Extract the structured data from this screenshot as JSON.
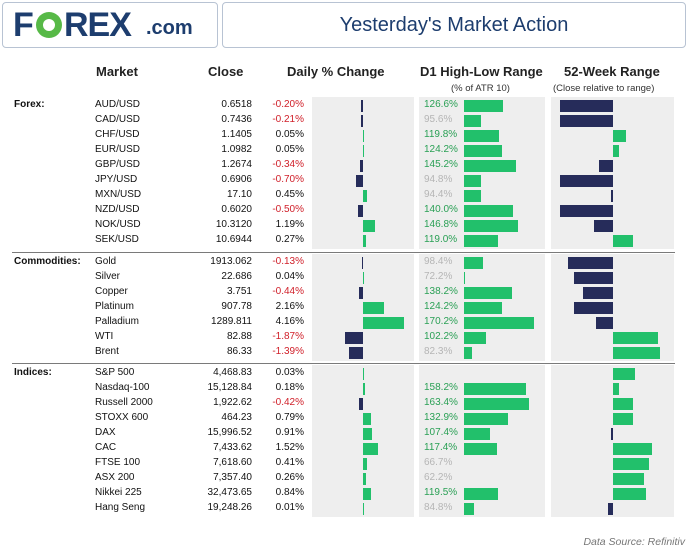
{
  "header": {
    "logo_f": "F",
    "logo_rex": "REX",
    "logo_com": ".com",
    "title": "Yesterday's Market Action"
  },
  "columns": {
    "market": "Market",
    "close": "Close",
    "daily": "Daily % Change",
    "range": "D1 High-Low Range",
    "range_sub": "(% of ATR 10)",
    "week52": "52-Week Range",
    "week52_sub": "(Close relative to range)"
  },
  "colors": {
    "positive": "#22c06b",
    "negative_bar": "#262c5a",
    "negative_text": "#d0202a",
    "panel": "#eeeeee"
  },
  "chart_data": {
    "type": "table",
    "daily_axis_max": 4.5,
    "range_axis_max": 170,
    "groups": [
      {
        "name": "Forex:",
        "rows": [
          {
            "market": "AUD/USD",
            "close": "0.6518",
            "daily": -0.2,
            "daily_label": "-0.20%",
            "range": 126.6,
            "range_label": "126.6%",
            "range_good": true,
            "w52": -1.0
          },
          {
            "market": "CAD/USD",
            "close": "0.7436",
            "daily": -0.21,
            "daily_label": "-0.21%",
            "range": 95.6,
            "range_label": "95.6%",
            "range_good": false,
            "w52": -1.0
          },
          {
            "market": "CHF/USD",
            "close": "1.1405",
            "daily": 0.05,
            "daily_label": "0.05%",
            "range": 119.8,
            "range_label": "119.8%",
            "range_good": true,
            "w52": 0.24
          },
          {
            "market": "EUR/USD",
            "close": "1.0982",
            "daily": 0.05,
            "daily_label": "0.05%",
            "range": 124.2,
            "range_label": "124.2%",
            "range_good": true,
            "w52": 0.12
          },
          {
            "market": "GBP/USD",
            "close": "1.2674",
            "daily": -0.34,
            "daily_label": "-0.34%",
            "range": 145.2,
            "range_label": "145.2%",
            "range_good": true,
            "w52": -0.26
          },
          {
            "market": "JPY/USD",
            "close": "0.6906",
            "daily": -0.7,
            "daily_label": "-0.70%",
            "range": 94.8,
            "range_label": "94.8%",
            "range_good": false,
            "w52": -1.0
          },
          {
            "market": "MXN/USD",
            "close": "17.10",
            "daily": 0.45,
            "daily_label": "0.45%",
            "range": 94.4,
            "range_label": "94.4%",
            "range_good": false,
            "w52": -0.02
          },
          {
            "market": "NZD/USD",
            "close": "0.6020",
            "daily": -0.5,
            "daily_label": "-0.50%",
            "range": 140.0,
            "range_label": "140.0%",
            "range_good": true,
            "w52": -1.0
          },
          {
            "market": "NOK/USD",
            "close": "10.3120",
            "daily": 1.19,
            "daily_label": "1.19%",
            "range": 146.8,
            "range_label": "146.8%",
            "range_good": true,
            "w52": -0.35
          },
          {
            "market": "SEK/USD",
            "close": "10.6944",
            "daily": 0.27,
            "daily_label": "0.27%",
            "range": 119.0,
            "range_label": "119.0%",
            "range_good": true,
            "w52": 0.38
          }
        ]
      },
      {
        "name": "Commodities:",
        "rows": [
          {
            "market": "Gold",
            "close": "1913.062",
            "daily": -0.13,
            "daily_label": "-0.13%",
            "range": 98.4,
            "range_label": "98.4%",
            "range_good": false,
            "w52": -0.84
          },
          {
            "market": "Silver",
            "close": "22.686",
            "daily": 0.04,
            "daily_label": "0.04%",
            "range": 72.2,
            "range_label": "72.2%",
            "range_good": false,
            "w52": -0.73
          },
          {
            "market": "Copper",
            "close": "3.751",
            "daily": -0.44,
            "daily_label": "-0.44%",
            "range": 138.2,
            "range_label": "138.2%",
            "range_good": true,
            "w52": -0.56
          },
          {
            "market": "Platinum",
            "close": "907.78",
            "daily": 2.16,
            "daily_label": "2.16%",
            "range": 124.2,
            "range_label": "124.2%",
            "range_good": true,
            "w52": -0.74
          },
          {
            "market": "Palladium",
            "close": "1289.811",
            "daily": 4.16,
            "daily_label": "4.16%",
            "range": 170.2,
            "range_label": "170.2%",
            "range_good": true,
            "w52": -0.33
          },
          {
            "market": "WTI",
            "close": "82.88",
            "daily": -1.87,
            "daily_label": "-1.87%",
            "range": 102.2,
            "range_label": "102.2%",
            "range_good": true,
            "w52": 0.84
          },
          {
            "market": "Brent",
            "close": "86.33",
            "daily": -1.39,
            "daily_label": "-1.39%",
            "range": 82.3,
            "range_label": "82.3%",
            "range_good": false,
            "w52": 0.88
          }
        ]
      },
      {
        "name": "Indices:",
        "rows": [
          {
            "market": "S&P 500",
            "close": "4,468.83",
            "daily": 0.03,
            "daily_label": "0.03%",
            "range": 0,
            "range_label": "",
            "range_good": true,
            "w52": 0.41
          },
          {
            "market": "Nasdaq-100",
            "close": "15,128.84",
            "daily": 0.18,
            "daily_label": "0.18%",
            "range": 158.2,
            "range_label": "158.2%",
            "range_good": true,
            "w52": 0.12
          },
          {
            "market": "Russell 2000",
            "close": "1,922.62",
            "daily": -0.42,
            "daily_label": "-0.42%",
            "range": 163.4,
            "range_label": "163.4%",
            "range_good": true,
            "w52": 0.38
          },
          {
            "market": "STOXX 600",
            "close": "464.23",
            "daily": 0.79,
            "daily_label": "0.79%",
            "range": 132.9,
            "range_label": "132.9%",
            "range_good": true,
            "w52": 0.38
          },
          {
            "market": "DAX",
            "close": "15,996.52",
            "daily": 0.91,
            "daily_label": "0.91%",
            "range": 107.4,
            "range_label": "107.4%",
            "range_good": true,
            "w52": -0.02
          },
          {
            "market": "CAC",
            "close": "7,433.62",
            "daily": 1.52,
            "daily_label": "1.52%",
            "range": 117.4,
            "range_label": "117.4%",
            "range_good": true,
            "w52": 0.74
          },
          {
            "market": "FTSE 100",
            "close": "7,618.60",
            "daily": 0.41,
            "daily_label": "0.41%",
            "range": 66.7,
            "range_label": "66.7%",
            "range_good": false,
            "w52": 0.68
          },
          {
            "market": "ASX 200",
            "close": "7,357.40",
            "daily": 0.26,
            "daily_label": "0.26%",
            "range": 62.2,
            "range_label": "62.2%",
            "range_good": false,
            "w52": 0.58
          },
          {
            "market": "Nikkei 225",
            "close": "32,473.65",
            "daily": 0.84,
            "daily_label": "0.84%",
            "range": 119.5,
            "range_label": "119.5%",
            "range_good": true,
            "w52": 0.63
          },
          {
            "market": "Hang Seng",
            "close": "19,248.26",
            "daily": 0.01,
            "daily_label": "0.01%",
            "range": 84.8,
            "range_label": "84.8%",
            "range_good": false,
            "w52": -0.09
          }
        ]
      }
    ]
  },
  "footer": {
    "source": "Data Source: Refinitiv"
  }
}
